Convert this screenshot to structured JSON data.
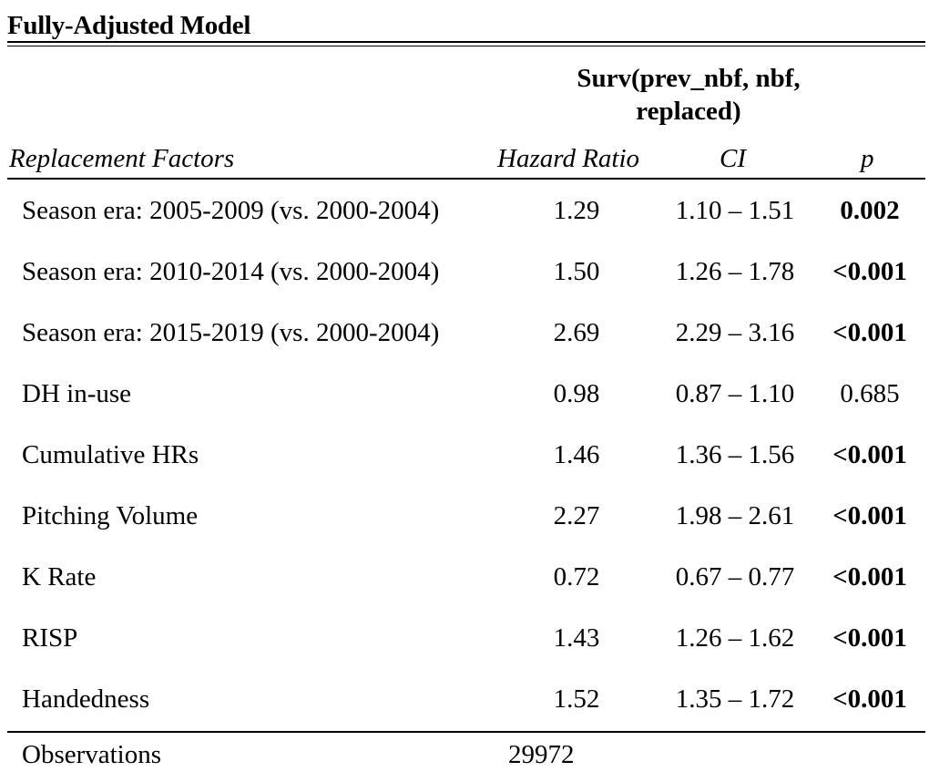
{
  "title": "Fully-Adjusted Model",
  "group_header": "Surv(prev_nbf, nbf, replaced)",
  "columns": {
    "label": "Replacement Factors",
    "hazard_ratio": "Hazard Ratio",
    "ci": "CI",
    "p": "p"
  },
  "rows": [
    {
      "label": "Season era: 2005-2009 (vs. 2000-2004)",
      "hr": "1.29",
      "ci": "1.10 – 1.51",
      "p": "0.002",
      "p_bold": true
    },
    {
      "label": "Season era: 2010-2014 (vs. 2000-2004)",
      "hr": "1.50",
      "ci": "1.26 – 1.78",
      "p": "<0.001",
      "p_bold": true
    },
    {
      "label": "Season era: 2015-2019 (vs. 2000-2004)",
      "hr": "2.69",
      "ci": "2.29 – 3.16",
      "p": "<0.001",
      "p_bold": true
    },
    {
      "label": "DH in-use",
      "hr": "0.98",
      "ci": "0.87 – 1.10",
      "p": "0.685",
      "p_bold": false
    },
    {
      "label": "Cumulative HRs",
      "hr": "1.46",
      "ci": "1.36 – 1.56",
      "p": "<0.001",
      "p_bold": true
    },
    {
      "label": "Pitching Volume",
      "hr": "2.27",
      "ci": "1.98 – 2.61",
      "p": "<0.001",
      "p_bold": true
    },
    {
      "label": "K Rate",
      "hr": "0.72",
      "ci": "0.67 – 0.77",
      "p": "<0.001",
      "p_bold": true
    },
    {
      "label": "RISP",
      "hr": "1.43",
      "ci": "1.26 – 1.62",
      "p": "<0.001",
      "p_bold": true
    },
    {
      "label": "Handedness",
      "hr": "1.52",
      "ci": "1.35 – 1.72",
      "p": "<0.001",
      "p_bold": true
    }
  ],
  "footer": {
    "observations_label": "Observations",
    "observations_value": "29972"
  }
}
